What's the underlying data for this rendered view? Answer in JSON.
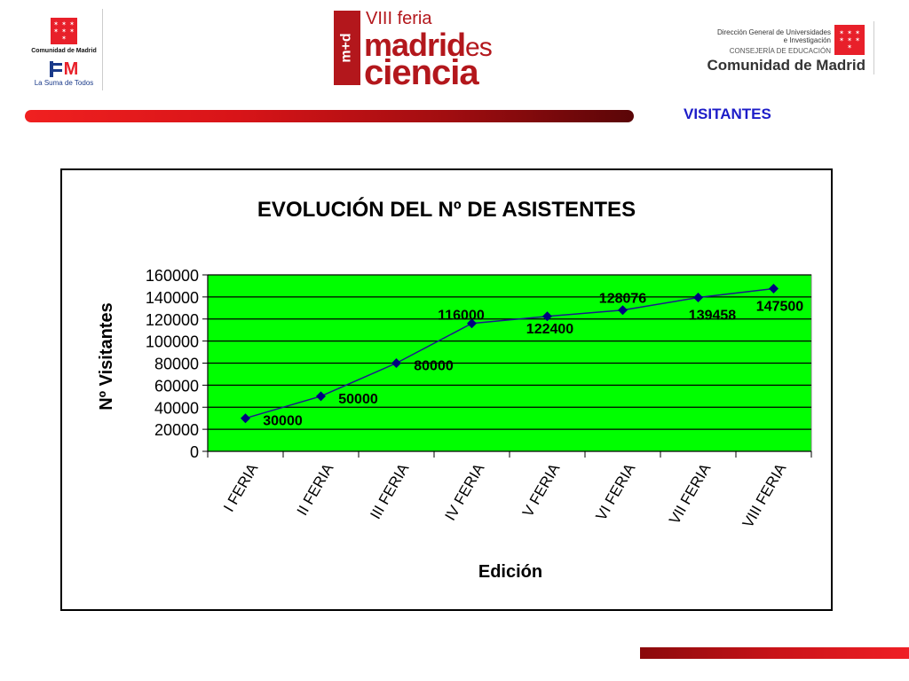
{
  "header": {
    "left_logo": {
      "org_name": "Comunidad de Madrid",
      "flag_icon": "star-flag-icon",
      "em_logo_letter": "M",
      "tagline": "La Suma de Todos"
    },
    "center_logo": {
      "edition": "VIII feria",
      "line1": "madrid",
      "line1_suffix": "es",
      "line2": "ciencia",
      "side_mark": "m+d"
    },
    "right_logo": {
      "line1": "Dirección General de Universidades",
      "line2": "e Investigación",
      "line3": "CONSEJERÍA DE EDUCACIÓN",
      "org_name": "Comunidad de Madrid",
      "flag_icon": "star-flag-icon"
    },
    "section_label": "VISITANTES"
  },
  "colors": {
    "brand_red": "#b3171c",
    "plot_background": "#00ff00",
    "series_line": "#1a1a8c",
    "section_label": "#1c1cc8"
  },
  "chart_data": {
    "type": "line",
    "title": "EVOLUCIÓN DEL Nº DE ASISTENTES",
    "xlabel": "Edición",
    "ylabel": "Nº Visitantes",
    "categories": [
      "I FERIA",
      "II FERIA",
      "III FERIA",
      "IV FERIA",
      "V FERIA",
      "VI FERIA",
      "VII FERIA",
      "VIII FERIA"
    ],
    "series": [
      {
        "values": [
          30000,
          50000,
          80000,
          116000,
          122400,
          128076,
          139458,
          147500
        ]
      }
    ],
    "data_labels": [
      "30000",
      "50000",
      "80000",
      "116000",
      "122400",
      "128076",
      "139458",
      "147500"
    ],
    "ylim": [
      0,
      160000
    ],
    "yticks": [
      0,
      20000,
      40000,
      60000,
      80000,
      100000,
      120000,
      140000,
      160000
    ],
    "ytick_labels": [
      "0",
      "20000",
      "40000",
      "60000",
      "80000",
      "100000",
      "120000",
      "140000",
      "160000"
    ],
    "grid": true,
    "legend": "none",
    "marker": "diamond"
  }
}
